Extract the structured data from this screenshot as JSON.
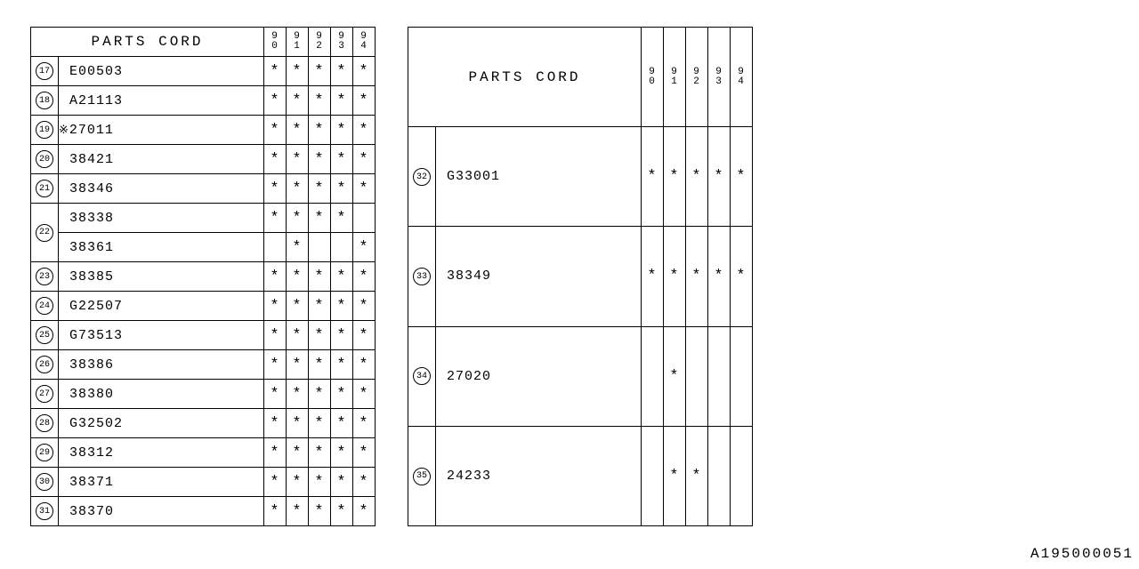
{
  "header_label": "PARTS CORD",
  "year_cols": [
    "90",
    "91",
    "92",
    "93",
    "94"
  ],
  "left_rows": [
    {
      "ref": "17",
      "code": "E00503",
      "marks": [
        true,
        true,
        true,
        true,
        true
      ]
    },
    {
      "ref": "18",
      "code": "A21113",
      "marks": [
        true,
        true,
        true,
        true,
        true
      ]
    },
    {
      "ref": "19",
      "code": "27011",
      "note": true,
      "marks": [
        true,
        true,
        true,
        true,
        true
      ]
    },
    {
      "ref": "20",
      "code": "38421",
      "marks": [
        true,
        true,
        true,
        true,
        true
      ]
    },
    {
      "ref": "21",
      "code": "38346",
      "marks": [
        true,
        true,
        true,
        true,
        true
      ]
    },
    {
      "ref": "22",
      "code": "38338",
      "span": 2,
      "marks": [
        true,
        true,
        true,
        true,
        false
      ]
    },
    {
      "ref": "",
      "code": "38361",
      "marks": [
        false,
        true,
        false,
        false,
        true
      ]
    },
    {
      "ref": "23",
      "code": "38385",
      "marks": [
        true,
        true,
        true,
        true,
        true
      ]
    },
    {
      "ref": "24",
      "code": "G22507",
      "marks": [
        true,
        true,
        true,
        true,
        true
      ]
    },
    {
      "ref": "25",
      "code": "G73513",
      "marks": [
        true,
        true,
        true,
        true,
        true
      ]
    },
    {
      "ref": "26",
      "code": "38386",
      "marks": [
        true,
        true,
        true,
        true,
        true
      ]
    },
    {
      "ref": "27",
      "code": "38380",
      "marks": [
        true,
        true,
        true,
        true,
        true
      ]
    },
    {
      "ref": "28",
      "code": "G32502",
      "marks": [
        true,
        true,
        true,
        true,
        true
      ]
    },
    {
      "ref": "29",
      "code": "38312",
      "marks": [
        true,
        true,
        true,
        true,
        true
      ]
    },
    {
      "ref": "30",
      "code": "38371",
      "marks": [
        true,
        true,
        true,
        true,
        true
      ]
    },
    {
      "ref": "31",
      "code": "38370",
      "marks": [
        true,
        true,
        true,
        true,
        true
      ]
    }
  ],
  "right_rows": [
    {
      "ref": "32",
      "code": "G33001",
      "marks": [
        true,
        true,
        true,
        true,
        true
      ]
    },
    {
      "ref": "33",
      "code": "38349",
      "marks": [
        true,
        true,
        true,
        true,
        true
      ]
    },
    {
      "ref": "34",
      "code": "27020",
      "marks": [
        false,
        true,
        false,
        false,
        false
      ]
    },
    {
      "ref": "35",
      "code": "24233",
      "marks": [
        false,
        true,
        true,
        false,
        false
      ]
    }
  ],
  "page_code": "A195000051",
  "asterisk": "*",
  "note_symbol": "※"
}
